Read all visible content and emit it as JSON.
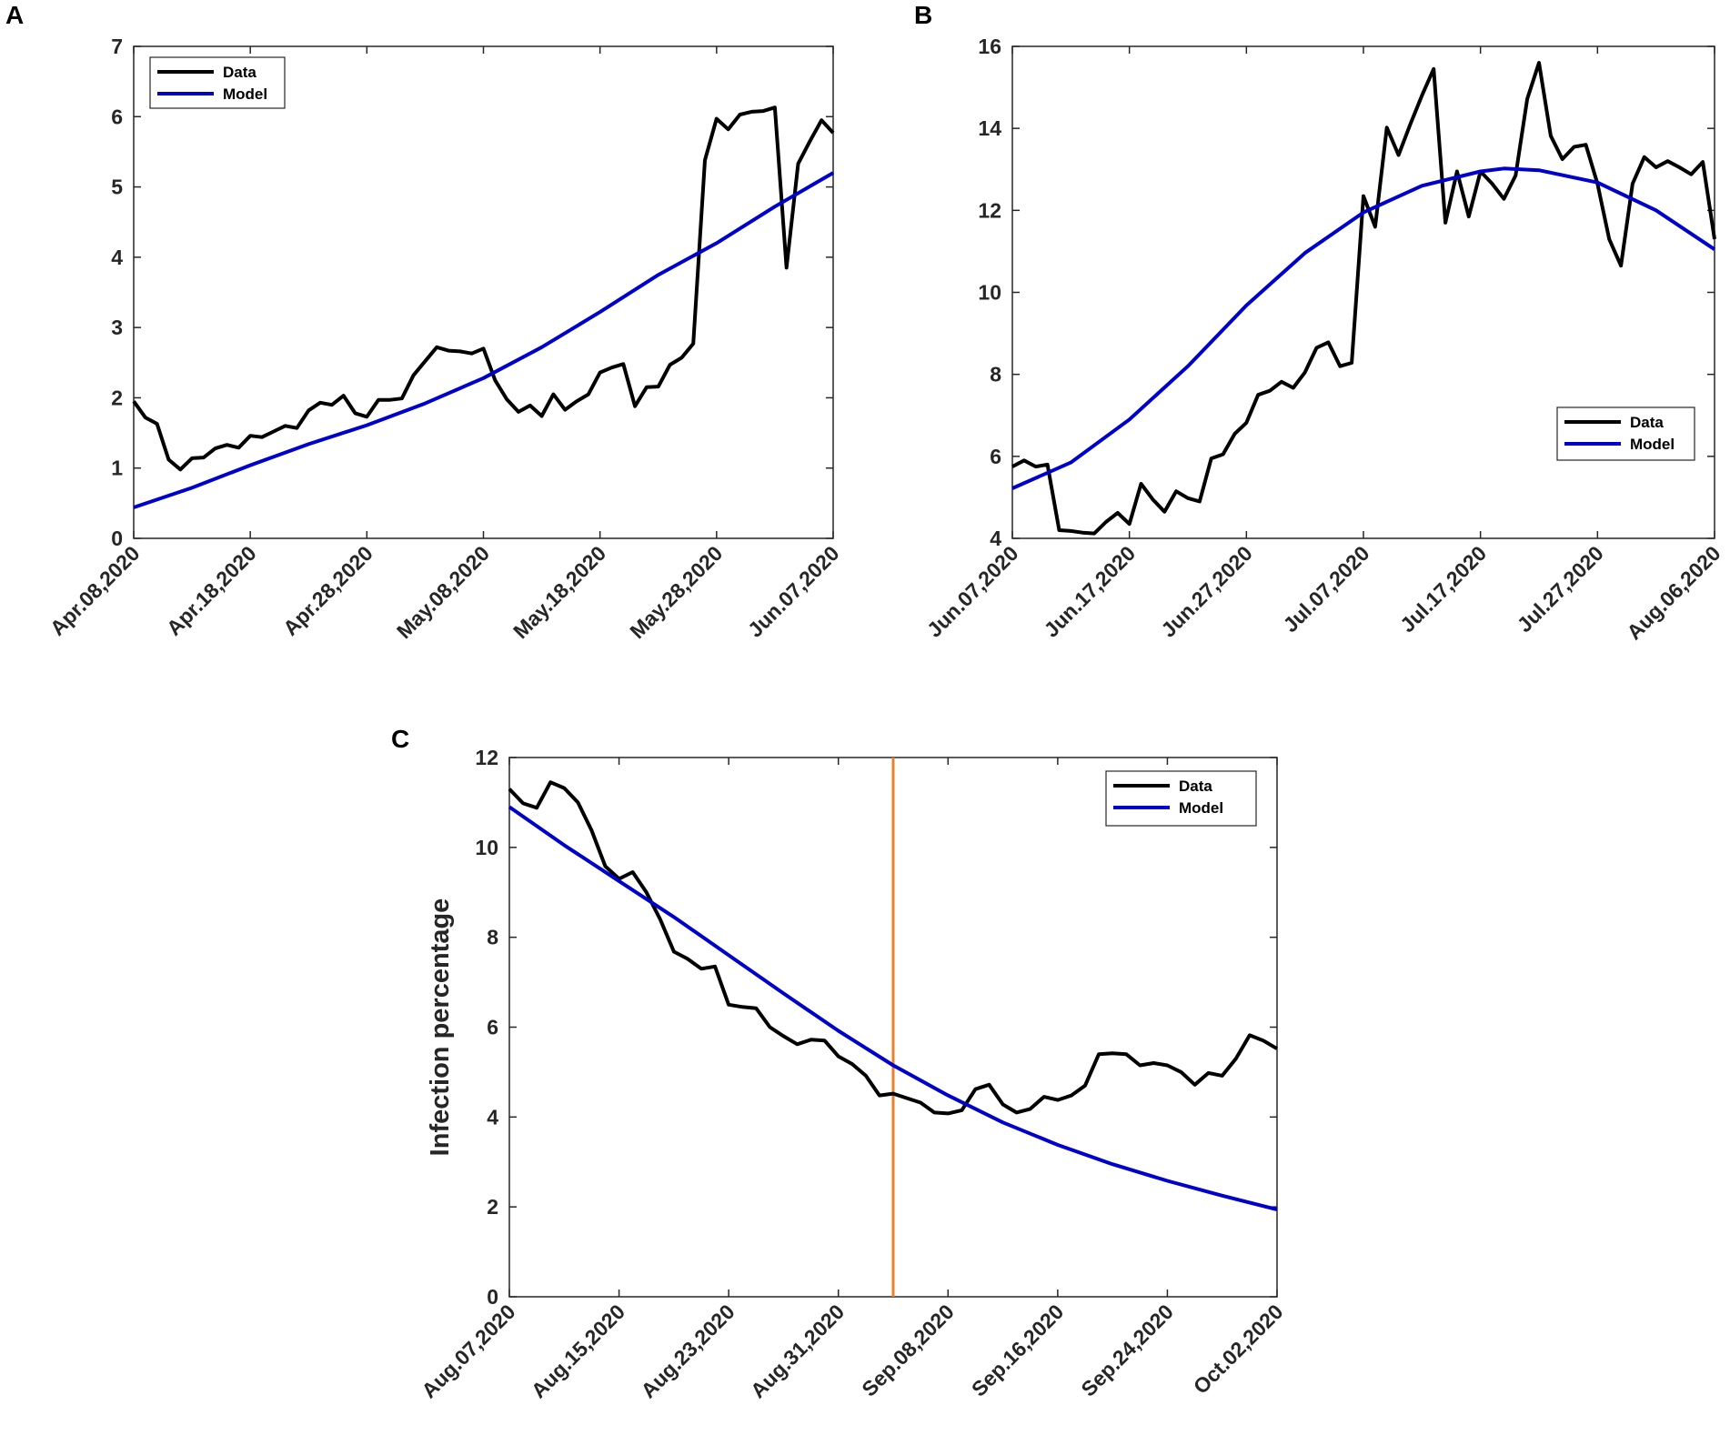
{
  "colors": {
    "data": "#000000",
    "model": "#0000cc",
    "marker": "#e8822a",
    "axis": "#262626"
  },
  "chart_data": [
    {
      "panel": "A",
      "type": "line",
      "ylim": [
        0,
        7
      ],
      "yticks": [
        0,
        1,
        2,
        3,
        4,
        5,
        6,
        7
      ],
      "xlim": [
        0,
        60
      ],
      "xticks": [
        0,
        10,
        20,
        30,
        40,
        50,
        60
      ],
      "xticklabels": [
        "Apr.08,2020",
        "Apr.18,2020",
        "Apr.28,2020",
        "May.08,2020",
        "May.18,2020",
        "May.28,2020",
        "Jun.07,2020"
      ],
      "legend": {
        "position": "top-left",
        "entries": [
          "Data",
          "Model"
        ]
      },
      "ylabel": "",
      "series": [
        {
          "name": "Data",
          "x": [
            0,
            1,
            2,
            3,
            4,
            5,
            6,
            7,
            8,
            9,
            10,
            11,
            12,
            13,
            14,
            15,
            16,
            17,
            18,
            19,
            20,
            21,
            22,
            23,
            24,
            25,
            26,
            27,
            28,
            29,
            30,
            31,
            32,
            33,
            34,
            35,
            36,
            37,
            38,
            39,
            40,
            41,
            42,
            43,
            44,
            45,
            46,
            47,
            48,
            49,
            50,
            51,
            52,
            53,
            54,
            55,
            56,
            57,
            58,
            59,
            60
          ],
          "y": [
            1.95,
            1.72,
            1.63,
            1.12,
            0.98,
            1.14,
            1.15,
            1.28,
            1.33,
            1.29,
            1.46,
            1.44,
            1.52,
            1.6,
            1.57,
            1.82,
            1.93,
            1.9,
            2.03,
            1.78,
            1.73,
            1.97,
            1.97,
            1.99,
            2.32,
            2.52,
            2.72,
            2.67,
            2.66,
            2.63,
            2.7,
            2.25,
            1.98,
            1.8,
            1.89,
            1.74,
            2.05,
            1.83,
            1.95,
            2.05,
            2.36,
            2.43,
            2.48,
            1.88,
            2.15,
            2.16,
            2.47,
            2.57,
            2.77,
            5.38,
            5.97,
            5.82,
            6.03,
            6.07,
            6.08,
            6.13,
            3.85,
            5.33,
            5.65,
            5.95,
            5.77
          ]
        },
        {
          "name": "Model",
          "x": [
            0,
            5,
            10,
            15,
            20,
            25,
            30,
            35,
            40,
            45,
            50,
            55,
            60
          ],
          "y": [
            0.44,
            0.72,
            1.04,
            1.34,
            1.61,
            1.92,
            2.28,
            2.72,
            3.22,
            3.75,
            4.2,
            4.72,
            5.2
          ]
        }
      ]
    },
    {
      "panel": "B",
      "type": "line",
      "ylim": [
        4,
        16
      ],
      "yticks": [
        4,
        6,
        8,
        10,
        12,
        14,
        16
      ],
      "xlim": [
        0,
        60
      ],
      "xticks": [
        0,
        10,
        20,
        30,
        40,
        50,
        60
      ],
      "xticklabels": [
        "Jun.07,2020",
        "Jun.17,2020",
        "Jun.27,2020",
        "Jul.07,2020",
        "Jul.17,2020",
        "Jul.27,2020",
        "Aug.06,2020"
      ],
      "legend": {
        "position": "middle-right",
        "entries": [
          "Data",
          "Model"
        ]
      },
      "ylabel": "",
      "series": [
        {
          "name": "Data",
          "x": [
            0,
            1,
            2,
            3,
            4,
            5,
            6,
            7,
            8,
            9,
            10,
            11,
            12,
            13,
            14,
            15,
            16,
            17,
            18,
            19,
            20,
            21,
            22,
            23,
            24,
            25,
            26,
            27,
            28,
            29,
            30,
            31,
            32,
            33,
            34,
            35,
            36,
            37,
            38,
            39,
            40,
            41,
            42,
            43,
            44,
            45,
            46,
            47,
            48,
            49,
            50,
            51,
            52,
            53,
            54,
            55,
            56,
            57,
            58,
            59,
            60
          ],
          "y": [
            5.75,
            5.9,
            5.75,
            5.8,
            4.2,
            4.18,
            4.14,
            4.12,
            4.4,
            4.62,
            4.35,
            5.33,
            4.95,
            4.65,
            5.15,
            4.98,
            4.9,
            5.95,
            6.05,
            6.55,
            6.82,
            7.5,
            7.6,
            7.82,
            7.67,
            8.05,
            8.65,
            8.78,
            8.2,
            8.28,
            12.35,
            11.6,
            14.02,
            13.35,
            14.1,
            14.8,
            15.45,
            11.7,
            12.95,
            11.85,
            12.95,
            12.65,
            12.28,
            12.85,
            14.72,
            15.6,
            13.82,
            13.25,
            13.55,
            13.6,
            12.65,
            11.3,
            10.65,
            12.65,
            13.3,
            13.05,
            13.2,
            13.05,
            12.88,
            13.18,
            11.3
          ]
        },
        {
          "name": "Model",
          "x": [
            0,
            5,
            10,
            15,
            20,
            25,
            30,
            35,
            40,
            42,
            45,
            50,
            55,
            60
          ],
          "y": [
            5.22,
            5.85,
            6.9,
            8.2,
            9.68,
            10.96,
            11.95,
            12.6,
            12.95,
            13.02,
            12.98,
            12.68,
            12.0,
            11.05
          ]
        }
      ]
    },
    {
      "panel": "C",
      "type": "line",
      "ylim": [
        0,
        12
      ],
      "yticks": [
        0,
        2,
        4,
        6,
        8,
        10,
        12
      ],
      "xlim": [
        0,
        56
      ],
      "xticks": [
        0,
        8,
        16,
        24,
        32,
        40,
        48,
        56
      ],
      "xticklabels": [
        "Aug.07,2020",
        "Aug.15,2020",
        "Aug.23,2020",
        "Aug.31,2020",
        "Sep.08,2020",
        "Sep.16,2020",
        "Sep.24,2020",
        "Oct.02,2020"
      ],
      "legend": {
        "position": "top-right",
        "entries": [
          "Data",
          "Model"
        ]
      },
      "ylabel": "Infection percentage",
      "vline": 28,
      "series": [
        {
          "name": "Data",
          "x": [
            0,
            1,
            2,
            3,
            4,
            5,
            6,
            7,
            8,
            9,
            10,
            11,
            12,
            13,
            14,
            15,
            16,
            17,
            18,
            19,
            20,
            21,
            22,
            23,
            24,
            25,
            26,
            27,
            28,
            29,
            30,
            31,
            32,
            33,
            34,
            35,
            36,
            37,
            38,
            39,
            40,
            41,
            42,
            43,
            44,
            45,
            46,
            47,
            48,
            49,
            50,
            51,
            52,
            53,
            54,
            55,
            56
          ],
          "y": [
            11.3,
            10.98,
            10.88,
            11.45,
            11.32,
            11.0,
            10.38,
            9.58,
            9.3,
            9.45,
            9.0,
            8.4,
            7.68,
            7.52,
            7.3,
            7.35,
            6.5,
            6.45,
            6.42,
            6.0,
            5.8,
            5.62,
            5.72,
            5.7,
            5.35,
            5.18,
            4.92,
            4.48,
            4.52,
            4.42,
            4.32,
            4.1,
            4.08,
            4.15,
            4.62,
            4.72,
            4.28,
            4.1,
            4.18,
            4.45,
            4.38,
            4.48,
            4.7,
            5.4,
            5.42,
            5.4,
            5.15,
            5.2,
            5.15,
            5.0,
            4.72,
            4.98,
            4.92,
            5.3,
            5.82,
            5.7,
            5.52
          ]
        },
        {
          "name": "Model",
          "x": [
            0,
            4,
            8,
            12,
            16,
            20,
            24,
            28,
            32,
            36,
            40,
            44,
            48,
            52,
            56
          ],
          "y": [
            10.9,
            10.05,
            9.25,
            8.45,
            7.6,
            6.75,
            5.92,
            5.15,
            4.48,
            3.88,
            3.38,
            2.95,
            2.58,
            2.25,
            1.94
          ]
        }
      ]
    }
  ]
}
